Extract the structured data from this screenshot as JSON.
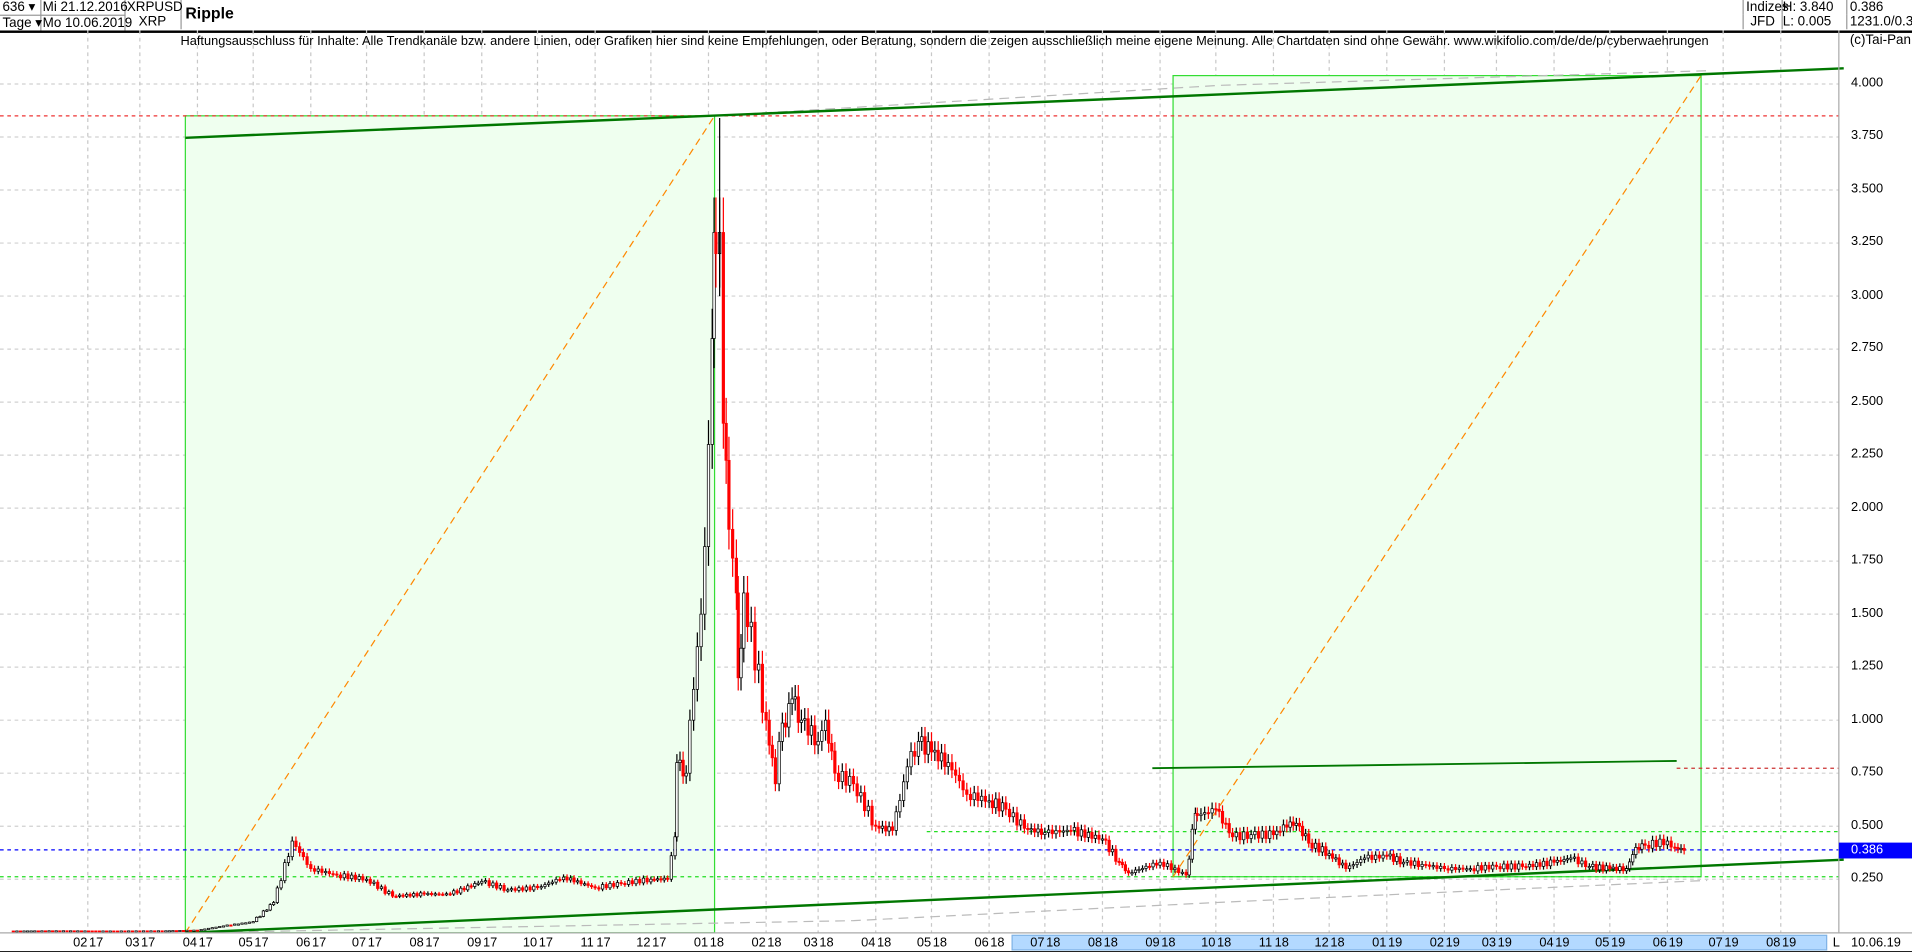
{
  "header": {
    "bars_count": "636 ▾",
    "period": "Tage ▾",
    "start_date": "Mi 21.12.2016",
    "end_date": "Mo 10.06.2019",
    "symbol": "XRPUSD",
    "symbol_short": "XRP",
    "title": "Ripple",
    "group": "Indizes",
    "broker": "JFD",
    "high": "H: 3.840",
    "low": "L: 0.005",
    "last": "0.386",
    "info": "1231.0/0.3"
  },
  "disclaimer": "Haftungsausschluss für Inhalte: Alle Trendkanäle bzw. andere Linien, oder Grafiken hier sind keine Empfehlungen, oder Beratung, sondern die zeigen ausschließlich meine eigene Meinung. Alle Chartdaten sind ohne Gewähr.  www.wikifolio.com/de/de/p/cyberwaehrungen",
  "copyright": "(c)Tai-Pan",
  "axis": {
    "scale_mode": "L",
    "current_date": "10.06.19",
    "current_price_label": "0.386"
  },
  "colors": {
    "up": "#000000",
    "down": "#ff0000",
    "box_fill": "#efffef",
    "box_stroke": "#33dd33",
    "trend": "#007700",
    "fib_diag": "#ff8800",
    "last_price": "#0000ff",
    "axis_highlight": "#b3d9ff"
  },
  "chart_data": {
    "type": "candlestick",
    "ylim": [
      0,
      4.1
    ],
    "y_ticks": [
      "0.250",
      "0.500",
      "0.750",
      "1.000",
      "1.250",
      "1.500",
      "1.750",
      "2.000",
      "2.250",
      "2.500",
      "2.750",
      "3.000",
      "3.250",
      "3.500",
      "3.750",
      "4.000"
    ],
    "x_ticks": [
      [
        "02",
        "17"
      ],
      [
        "03",
        "17"
      ],
      [
        "04",
        "17"
      ],
      [
        "05",
        "17"
      ],
      [
        "06",
        "17"
      ],
      [
        "07",
        "17"
      ],
      [
        "08",
        "17"
      ],
      [
        "09",
        "17"
      ],
      [
        "10",
        "17"
      ],
      [
        "11",
        "17"
      ],
      [
        "12",
        "17"
      ],
      [
        "01",
        "18"
      ],
      [
        "02",
        "18"
      ],
      [
        "03",
        "18"
      ],
      [
        "04",
        "18"
      ],
      [
        "05",
        "18"
      ],
      [
        "06",
        "18"
      ],
      [
        "07",
        "18"
      ],
      [
        "08",
        "18"
      ],
      [
        "09",
        "18"
      ],
      [
        "10",
        "18"
      ],
      [
        "11",
        "18"
      ],
      [
        "12",
        "18"
      ],
      [
        "01",
        "19"
      ],
      [
        "02",
        "19"
      ],
      [
        "03",
        "19"
      ],
      [
        "04",
        "19"
      ],
      [
        "05",
        "19"
      ],
      [
        "06",
        "19"
      ],
      [
        "07",
        "19"
      ],
      [
        "08",
        "19"
      ]
    ],
    "high": 3.84,
    "low": 0.005,
    "last": 0.386,
    "closes": [
      [
        "2016-12-21",
        0.006
      ],
      [
        "2017-01-15",
        0.007
      ],
      [
        "2017-02-15",
        0.006
      ],
      [
        "2017-03-15",
        0.007
      ],
      [
        "2017-04-01",
        0.01
      ],
      [
        "2017-04-15",
        0.03
      ],
      [
        "2017-05-01",
        0.05
      ],
      [
        "2017-05-12",
        0.14
      ],
      [
        "2017-05-22",
        0.43
      ],
      [
        "2017-06-01",
        0.3
      ],
      [
        "2017-06-15",
        0.27
      ],
      [
        "2017-07-01",
        0.25
      ],
      [
        "2017-07-15",
        0.17
      ],
      [
        "2017-08-01",
        0.18
      ],
      [
        "2017-08-15",
        0.18
      ],
      [
        "2017-09-01",
        0.24
      ],
      [
        "2017-09-15",
        0.2
      ],
      [
        "2017-10-01",
        0.21
      ],
      [
        "2017-10-15",
        0.26
      ],
      [
        "2017-11-01",
        0.21
      ],
      [
        "2017-11-15",
        0.23
      ],
      [
        "2017-12-01",
        0.25
      ],
      [
        "2017-12-10",
        0.25
      ],
      [
        "2017-12-14",
        0.45
      ],
      [
        "2017-12-15",
        0.8
      ],
      [
        "2017-12-20",
        0.75
      ],
      [
        "2017-12-22",
        1.0
      ],
      [
        "2017-12-28",
        1.5
      ],
      [
        "2018-01-01",
        2.3
      ],
      [
        "2018-01-03",
        2.8
      ],
      [
        "2018-01-04",
        3.3
      ],
      [
        "2018-01-05",
        3.2
      ],
      [
        "2018-01-07",
        3.3
      ],
      [
        "2018-01-09",
        2.4
      ],
      [
        "2018-01-12",
        1.9
      ],
      [
        "2018-01-16",
        1.6
      ],
      [
        "2018-01-17",
        1.2
      ],
      [
        "2018-01-20",
        1.6
      ],
      [
        "2018-02-01",
        1.0
      ],
      [
        "2018-02-06",
        0.7
      ],
      [
        "2018-02-08",
        0.9
      ],
      [
        "2018-02-15",
        1.1
      ],
      [
        "2018-02-20",
        1.0
      ],
      [
        "2018-03-01",
        0.9
      ],
      [
        "2018-03-05",
        1.0
      ],
      [
        "2018-03-10",
        0.75
      ],
      [
        "2018-03-20",
        0.7
      ],
      [
        "2018-04-01",
        0.5
      ],
      [
        "2018-04-10",
        0.48
      ],
      [
        "2018-04-18",
        0.78
      ],
      [
        "2018-04-24",
        0.9
      ],
      [
        "2018-05-01",
        0.85
      ],
      [
        "2018-05-10",
        0.8
      ],
      [
        "2018-05-20",
        0.65
      ],
      [
        "2018-06-01",
        0.62
      ],
      [
        "2018-06-10",
        0.58
      ],
      [
        "2018-06-20",
        0.49
      ],
      [
        "2018-07-01",
        0.47
      ],
      [
        "2018-07-15",
        0.48
      ],
      [
        "2018-08-01",
        0.44
      ],
      [
        "2018-08-10",
        0.33
      ],
      [
        "2018-08-15",
        0.28
      ],
      [
        "2018-09-01",
        0.33
      ],
      [
        "2018-09-15",
        0.27
      ],
      [
        "2018-09-20",
        0.56
      ],
      [
        "2018-09-21",
        0.55
      ],
      [
        "2018-10-01",
        0.58
      ],
      [
        "2018-10-10",
        0.45
      ],
      [
        "2018-10-20",
        0.46
      ],
      [
        "2018-11-01",
        0.46
      ],
      [
        "2018-11-10",
        0.52
      ],
      [
        "2018-11-15",
        0.5
      ],
      [
        "2018-11-20",
        0.42
      ],
      [
        "2018-12-01",
        0.37
      ],
      [
        "2018-12-10",
        0.3
      ],
      [
        "2018-12-20",
        0.35
      ],
      [
        "2019-01-01",
        0.36
      ],
      [
        "2019-01-10",
        0.33
      ],
      [
        "2019-01-20",
        0.32
      ],
      [
        "2019-02-01",
        0.3
      ],
      [
        "2019-02-15",
        0.3
      ],
      [
        "2019-03-01",
        0.31
      ],
      [
        "2019-03-15",
        0.31
      ],
      [
        "2019-04-01",
        0.33
      ],
      [
        "2019-04-10",
        0.35
      ],
      [
        "2019-04-20",
        0.31
      ],
      [
        "2019-05-01",
        0.3
      ],
      [
        "2019-05-10",
        0.3
      ],
      [
        "2019-05-15",
        0.4
      ],
      [
        "2019-05-20",
        0.41
      ],
      [
        "2019-06-01",
        0.43
      ],
      [
        "2019-06-05",
        0.4
      ],
      [
        "2019-06-10",
        0.386
      ]
    ]
  }
}
